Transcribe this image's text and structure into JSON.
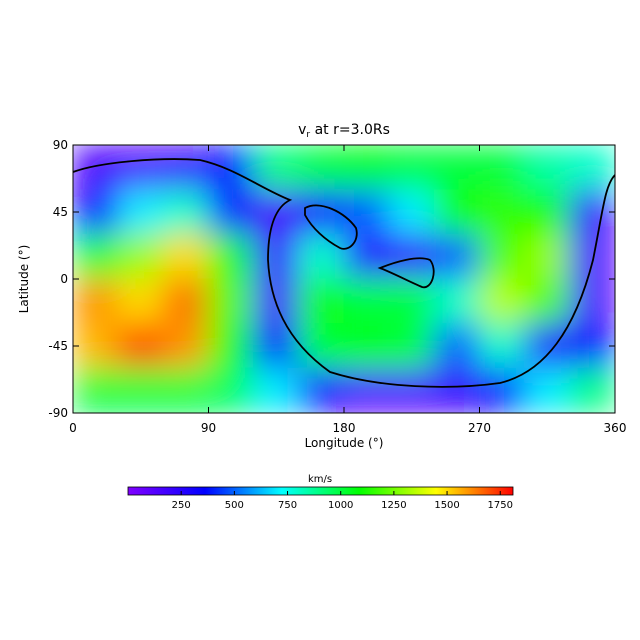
{
  "chart_data": {
    "type": "heatmap",
    "title": {
      "main": "v",
      "sub": "r",
      "rest": " at r=3.0Rs"
    },
    "x_label": "Longitude (°)",
    "y_label": "Latitude (°)",
    "xlim": [
      0,
      360
    ],
    "xticks": [
      0,
      90,
      180,
      270,
      360
    ],
    "ylim": [
      -90,
      90
    ],
    "yticks": [
      -90,
      -45,
      0,
      45,
      90
    ],
    "x": [
      15,
      45,
      75,
      105,
      135,
      165,
      195,
      225,
      255,
      285,
      315,
      345
    ],
    "y": [
      75,
      45,
      15,
      -15,
      -45,
      -75
    ],
    "z": [
      [
        150,
        150,
        200,
        400,
        900,
        1000,
        1050,
        1000,
        1000,
        1000,
        850,
        800
      ],
      [
        350,
        700,
        800,
        400,
        150,
        300,
        500,
        700,
        1100,
        1150,
        1100,
        200
      ],
      [
        1000,
        1300,
        1500,
        1050,
        200,
        800,
        250,
        200,
        500,
        1200,
        1300,
        150
      ],
      [
        1600,
        1500,
        1650,
        1200,
        150,
        1100,
        1000,
        1000,
        800,
        1350,
        1200,
        150
      ],
      [
        1550,
        1700,
        1600,
        1100,
        350,
        1000,
        1050,
        1000,
        500,
        800,
        250,
        400
      ],
      [
        1000,
        1000,
        1000,
        950,
        700,
        300,
        150,
        150,
        200,
        400,
        700,
        900
      ]
    ],
    "colors": [
      "#8000ff",
      "#0000ff",
      "#00ffff",
      "#00ff00",
      "#ffff00",
      "#ff0000"
    ],
    "colorbar": {
      "label": "km/s",
      "lim": [
        0,
        1810
      ],
      "ticks": [
        250,
        500,
        750,
        1000,
        1250,
        1500,
        1750
      ]
    }
  }
}
